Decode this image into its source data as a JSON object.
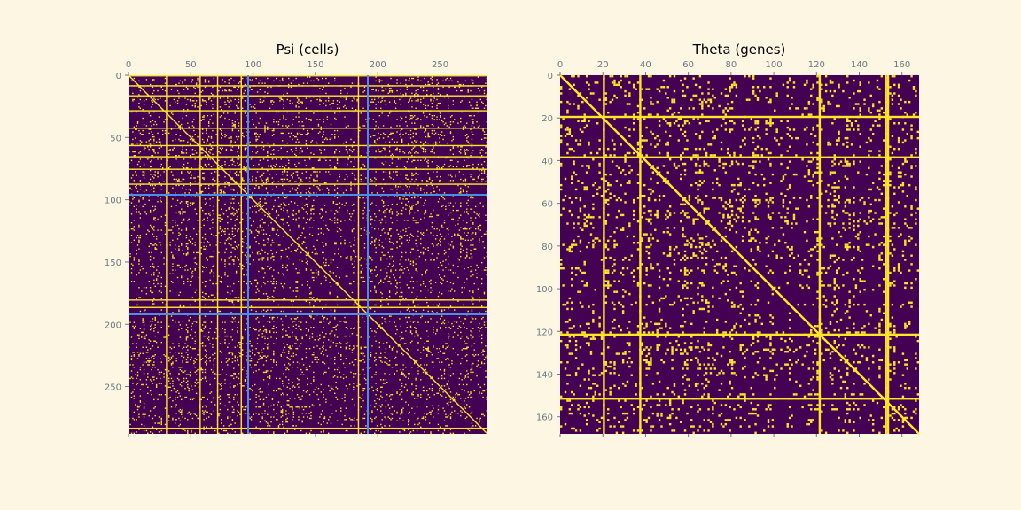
{
  "figure": {
    "background": "#fdf6e3"
  },
  "chart_data": [
    {
      "type": "heatmap",
      "title": "Psi (cells)",
      "n": 288,
      "x_ticks": [
        0,
        50,
        100,
        150,
        200,
        250
      ],
      "y_ticks": [
        0,
        50,
        100,
        150,
        200,
        250
      ],
      "xlim": [
        0,
        288
      ],
      "ylim": [
        288,
        0
      ],
      "colormap": "viridis-binary",
      "colors": {
        "off": "#440154",
        "on": "#fde725"
      },
      "sparse_density": 0.12,
      "diagonal": true,
      "full_rows": [
        0,
        8,
        16,
        28,
        42,
        56,
        65,
        75,
        87,
        180,
        186,
        283
      ],
      "full_cols": [
        30,
        57,
        71,
        90,
        184
      ],
      "block_boundaries": [
        96,
        192
      ],
      "block_boundary_color": "#4c8ee6"
    },
    {
      "type": "heatmap",
      "title": "Theta (genes)",
      "n": 168,
      "x_ticks": [
        0,
        20,
        40,
        60,
        80,
        100,
        120,
        140,
        160
      ],
      "y_ticks": [
        0,
        20,
        40,
        60,
        80,
        100,
        120,
        140,
        160
      ],
      "xlim": [
        0,
        168
      ],
      "ylim": [
        168,
        0
      ],
      "colormap": "viridis-binary",
      "colors": {
        "off": "#440154",
        "on": "#fde725"
      },
      "sparse_density": 0.18,
      "diagonal": true,
      "full_rows": [
        19,
        38,
        121,
        151
      ],
      "full_cols": [
        20,
        37,
        121,
        152,
        153
      ],
      "block_boundaries": [],
      "block_boundary_color": "#4c8ee6"
    }
  ]
}
